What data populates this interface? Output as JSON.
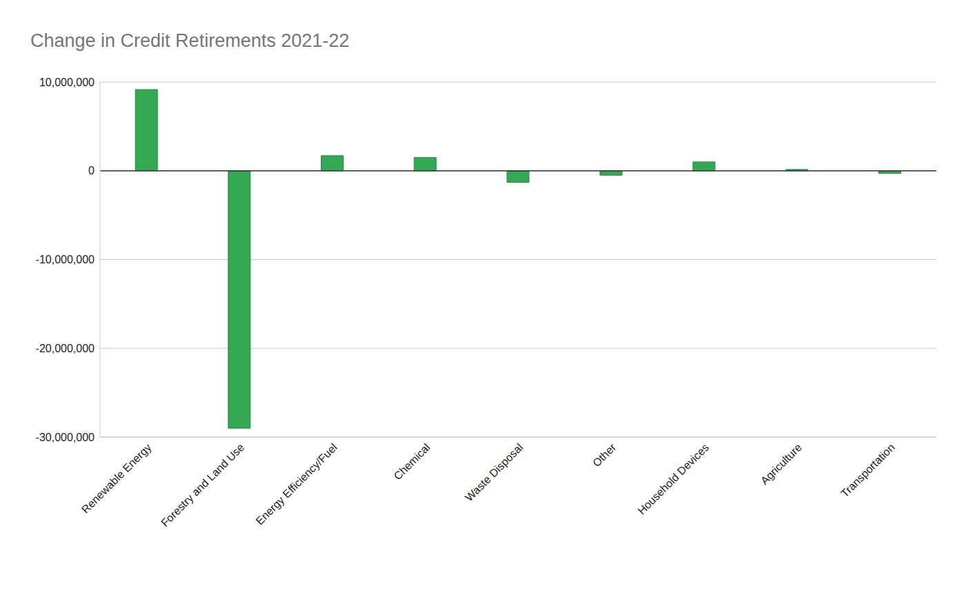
{
  "chart_data": {
    "type": "bar",
    "title": "Change in Credit Retirements 2021-22",
    "categories": [
      "Renewable Energy",
      "Forestry and Land Use",
      "Energy Efficiency/Fuel",
      "Chemical",
      "Waste Disposal",
      "Other",
      "Household Devices",
      "Agriculture",
      "Transportation"
    ],
    "values": [
      9150000,
      -29000000,
      1700000,
      1500000,
      -1300000,
      -500000,
      1000000,
      150000,
      -300000
    ],
    "color": "#34a853",
    "ylim": [
      -30000000,
      10000000
    ],
    "yticks": [
      {
        "value": -30000000,
        "label": "-30,000,000"
      },
      {
        "value": -20000000,
        "label": "-20,000,000"
      },
      {
        "value": -10000000,
        "label": "-10,000,000"
      },
      0,
      {
        "value": 10000000,
        "label": "10,000,000"
      }
    ],
    "grid": true
  }
}
